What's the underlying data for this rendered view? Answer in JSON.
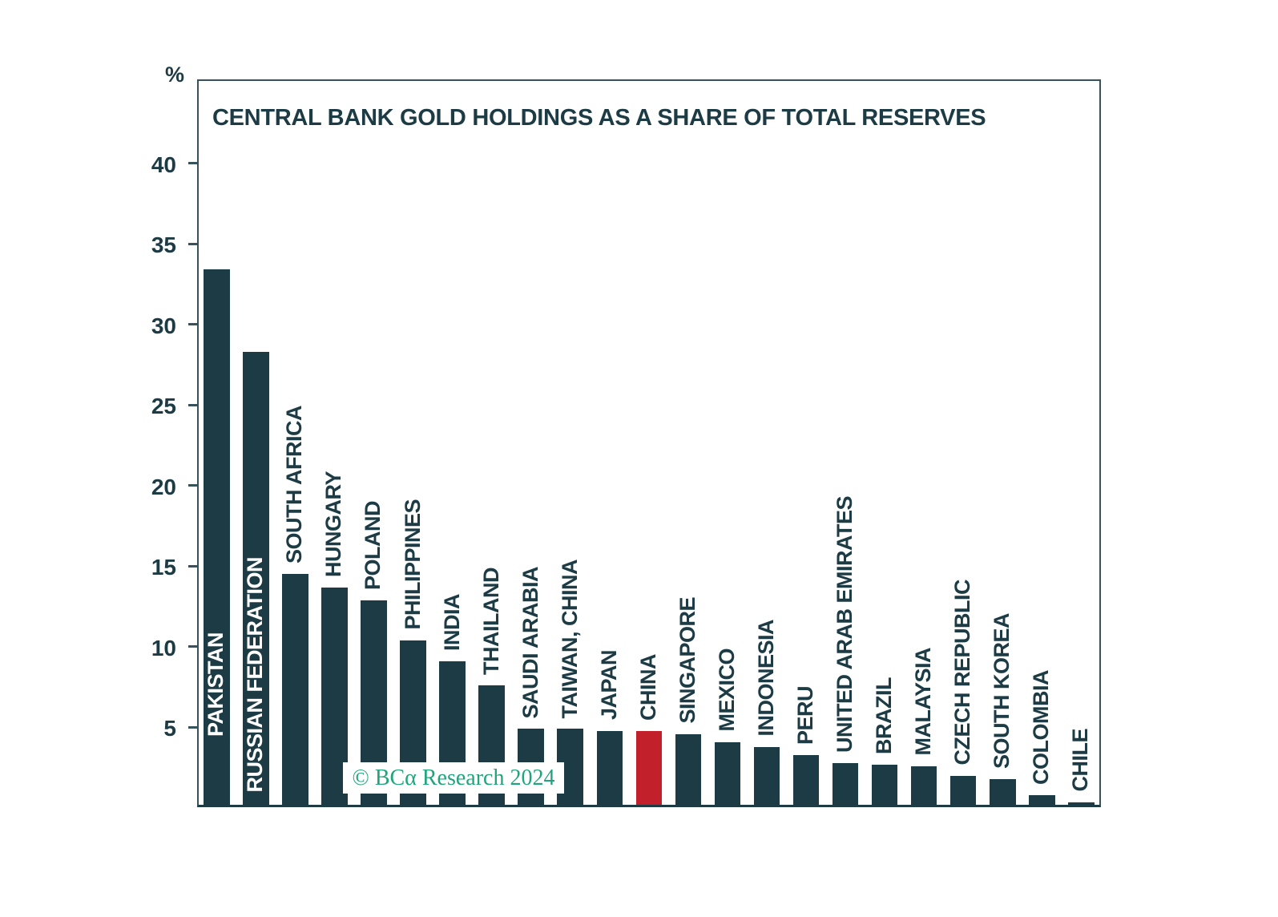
{
  "title": "CENTRAL BANK GOLD HOLDINGS AS A SHARE OF TOTAL RESERVES",
  "axis": {
    "unit_label": "%",
    "ticks": [
      40,
      35,
      30,
      25,
      20,
      15,
      10,
      5
    ]
  },
  "watermark": "© BCα Research 2024",
  "colors": {
    "bar_default": "#1c3b44",
    "bar_highlight": "#c2212b",
    "text": "#1c3b44",
    "inside_label": "#ffffff",
    "watermark_green": "#1fa47c",
    "frame": "#36525c"
  },
  "chart_data": {
    "type": "bar",
    "title": "CENTRAL BANK GOLD HOLDINGS AS A SHARE OF TOTAL RESERVES",
    "xlabel": "",
    "ylabel": "%",
    "ylim": [
      0,
      45
    ],
    "grid": false,
    "legend": false,
    "categories": [
      "PAKISTAN",
      "RUSSIAN FEDERATION",
      "SOUTH AFRICA",
      "HUNGARY",
      "POLAND",
      "PHILIPPINES",
      "INDIA",
      "THAILAND",
      "SAUDI ARABIA",
      "TAIWAN, CHINA",
      "JAPAN",
      "CHINA",
      "SINGAPORE",
      "MEXICO",
      "INDONESIA",
      "PERU",
      "UNITED ARAB EMIRATES",
      "BRAZIL",
      "MALAYSIA",
      "CZECH REPUBLIC",
      "SOUTH KOREA",
      "COLOMBIA",
      "CHILE"
    ],
    "values": [
      33.2,
      28.1,
      14.3,
      13.5,
      12.7,
      10.2,
      8.9,
      7.4,
      4.7,
      4.7,
      4.6,
      4.6,
      4.4,
      3.9,
      3.6,
      3.1,
      2.6,
      2.5,
      2.4,
      1.8,
      1.6,
      0.6,
      0.15
    ],
    "highlight_index": 11,
    "inside_label_indices": [
      0,
      1
    ]
  }
}
